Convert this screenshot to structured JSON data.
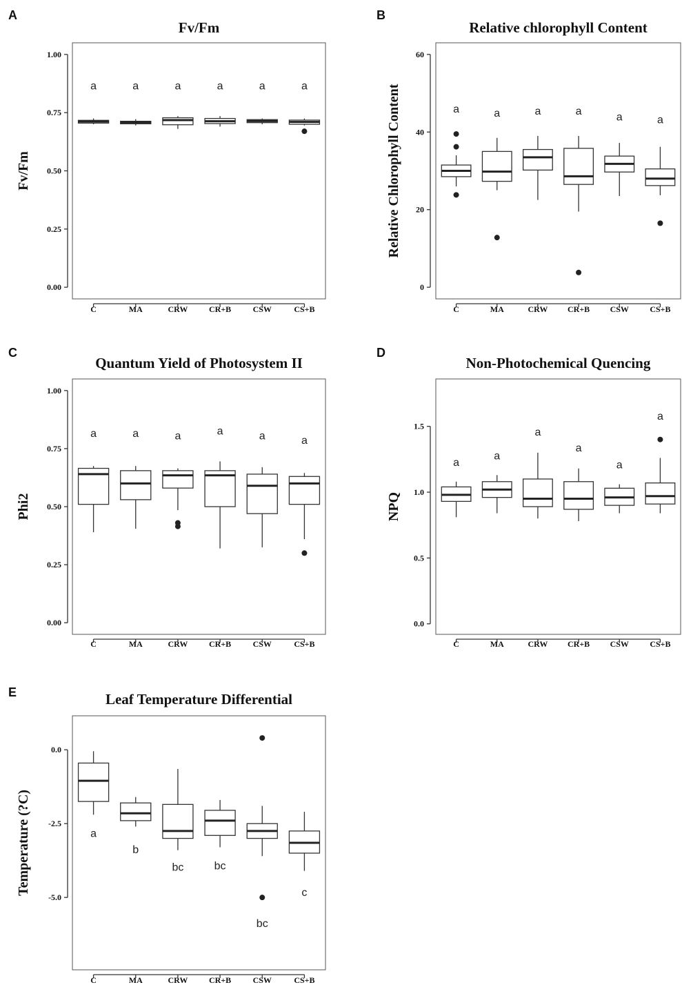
{
  "categories": [
    "C",
    "MA",
    "CRW",
    "CR+B",
    "CSW",
    "CS+B"
  ],
  "panels": [
    {
      "letter": "A",
      "title": "Fv/Fm",
      "ylabel": "Fv/Fm",
      "yticks": [
        "1.00",
        "0.75",
        "0.50",
        "0.25",
        "0.00"
      ],
      "chart_data": {
        "type": "box",
        "ylim": [
          -0.05,
          1.05
        ],
        "yticks": [
          0,
          0.25,
          0.5,
          0.75,
          1.0
        ],
        "boxes": [
          {
            "category": "C",
            "lw": 0.7,
            "q1": 0.705,
            "med": 0.712,
            "q3": 0.717,
            "uw": 0.725,
            "outliers": []
          },
          {
            "category": "MA",
            "lw": 0.695,
            "q1": 0.702,
            "med": 0.708,
            "q3": 0.713,
            "uw": 0.722,
            "outliers": []
          },
          {
            "category": "CRW",
            "lw": 0.68,
            "q1": 0.698,
            "med": 0.718,
            "q3": 0.728,
            "uw": 0.735,
            "outliers": []
          },
          {
            "category": "CR+B",
            "lw": 0.69,
            "q1": 0.703,
            "med": 0.713,
            "q3": 0.725,
            "uw": 0.735,
            "outliers": []
          },
          {
            "category": "CSW",
            "lw": 0.7,
            "q1": 0.707,
            "med": 0.714,
            "q3": 0.72,
            "uw": 0.725,
            "outliers": []
          },
          {
            "category": "CS+B",
            "lw": 0.695,
            "q1": 0.7,
            "med": 0.71,
            "q3": 0.718,
            "uw": 0.725,
            "outliers": [
              0.67
            ]
          }
        ],
        "letters": [
          {
            "text": "a",
            "y": 0.85
          },
          {
            "text": "a",
            "y": 0.85
          },
          {
            "text": "a",
            "y": 0.85
          },
          {
            "text": "a",
            "y": 0.85
          },
          {
            "text": "a",
            "y": 0.85
          },
          {
            "text": "a",
            "y": 0.85
          }
        ]
      }
    },
    {
      "letter": "B",
      "title": "Relative chlorophyll Content",
      "ylabel": "Relative Chlorophyll Content",
      "yticks": [
        "60",
        "40",
        "20",
        "0"
      ],
      "chart_data": {
        "type": "box",
        "ylim": [
          -3,
          63
        ],
        "yticks": [
          0,
          20,
          40,
          60
        ],
        "boxes": [
          {
            "category": "C",
            "lw": 26,
            "q1": 28.5,
            "med": 30,
            "q3": 31.5,
            "uw": 34,
            "outliers": [
              39.5,
              36.2,
              23.8
            ]
          },
          {
            "category": "MA",
            "lw": 25,
            "q1": 27.3,
            "med": 29.8,
            "q3": 35,
            "uw": 38.5,
            "outliers": [
              12.8
            ]
          },
          {
            "category": "CRW",
            "lw": 22.5,
            "q1": 30.2,
            "med": 33.5,
            "q3": 35.5,
            "uw": 39,
            "outliers": []
          },
          {
            "category": "CR+B",
            "lw": 19.5,
            "q1": 26.5,
            "med": 28.6,
            "q3": 35.8,
            "uw": 39,
            "outliers": [
              3.8
            ]
          },
          {
            "category": "CSW",
            "lw": 23.5,
            "q1": 29.7,
            "med": 31.8,
            "q3": 33.8,
            "uw": 37.2,
            "outliers": []
          },
          {
            "category": "CS+B",
            "lw": 23.7,
            "q1": 26.2,
            "med": 28,
            "q3": 30.5,
            "uw": 36.2,
            "outliers": [
              16.5
            ]
          }
        ],
        "letters": [
          {
            "text": "a",
            "y": 45
          },
          {
            "text": "a",
            "y": 44
          },
          {
            "text": "a",
            "y": 44.5
          },
          {
            "text": "a",
            "y": 44.5
          },
          {
            "text": "a",
            "y": 43
          },
          {
            "text": "a",
            "y": 42.3
          }
        ]
      }
    },
    {
      "letter": "C",
      "title": "Quantum Yield of Photosystem II",
      "ylabel": "Phi2",
      "yticks": [
        "1.00",
        "0.75",
        "0.50",
        "0.25",
        "0.00"
      ],
      "chart_data": {
        "type": "box",
        "ylim": [
          -0.05,
          1.05
        ],
        "yticks": [
          0,
          0.25,
          0.5,
          0.75,
          1.0
        ],
        "boxes": [
          {
            "category": "C",
            "lw": 0.39,
            "q1": 0.51,
            "med": 0.64,
            "q3": 0.665,
            "uw": 0.675,
            "outliers": []
          },
          {
            "category": "MA",
            "lw": 0.405,
            "q1": 0.53,
            "med": 0.6,
            "q3": 0.655,
            "uw": 0.675,
            "outliers": []
          },
          {
            "category": "CRW",
            "lw": 0.485,
            "q1": 0.58,
            "med": 0.635,
            "q3": 0.655,
            "uw": 0.665,
            "outliers": [
              0.43,
              0.415
            ]
          },
          {
            "category": "CR+B",
            "lw": 0.32,
            "q1": 0.5,
            "med": 0.635,
            "q3": 0.655,
            "uw": 0.695,
            "outliers": []
          },
          {
            "category": "CSW",
            "lw": 0.325,
            "q1": 0.47,
            "med": 0.59,
            "q3": 0.64,
            "uw": 0.67,
            "outliers": []
          },
          {
            "category": "CS+B",
            "lw": 0.36,
            "q1": 0.51,
            "med": 0.6,
            "q3": 0.63,
            "uw": 0.645,
            "outliers": [
              0.3
            ]
          }
        ],
        "letters": [
          {
            "text": "a",
            "y": 0.8
          },
          {
            "text": "a",
            "y": 0.8
          },
          {
            "text": "a",
            "y": 0.79
          },
          {
            "text": "a",
            "y": 0.81
          },
          {
            "text": "a",
            "y": 0.79
          },
          {
            "text": "a",
            "y": 0.77
          }
        ]
      }
    },
    {
      "letter": "D",
      "title": "Non-Photochemical Quencing",
      "ylabel": "NPQ",
      "yticks": [
        "1.5",
        "1.0",
        "0.5",
        "0.0"
      ],
      "chart_data": {
        "type": "box",
        "ylim": [
          -0.08,
          1.86
        ],
        "yticks": [
          0,
          0.5,
          1.0,
          1.5
        ],
        "boxes": [
          {
            "category": "C",
            "lw": 0.81,
            "q1": 0.93,
            "med": 0.98,
            "q3": 1.04,
            "uw": 1.08,
            "outliers": []
          },
          {
            "category": "MA",
            "lw": 0.84,
            "q1": 0.96,
            "med": 1.02,
            "q3": 1.08,
            "uw": 1.13,
            "outliers": []
          },
          {
            "category": "CRW",
            "lw": 0.8,
            "q1": 0.89,
            "med": 0.95,
            "q3": 1.1,
            "uw": 1.3,
            "outliers": []
          },
          {
            "category": "CR+B",
            "lw": 0.78,
            "q1": 0.87,
            "med": 0.95,
            "q3": 1.08,
            "uw": 1.18,
            "outliers": []
          },
          {
            "category": "CSW",
            "lw": 0.84,
            "q1": 0.9,
            "med": 0.96,
            "q3": 1.03,
            "uw": 1.06,
            "outliers": []
          },
          {
            "category": "CS+B",
            "lw": 0.84,
            "q1": 0.91,
            "med": 0.97,
            "q3": 1.07,
            "uw": 1.26,
            "outliers": [
              1.4
            ]
          }
        ],
        "letters": [
          {
            "text": "a",
            "y": 1.2
          },
          {
            "text": "a",
            "y": 1.25
          },
          {
            "text": "a",
            "y": 1.43
          },
          {
            "text": "a",
            "y": 1.31
          },
          {
            "text": "a",
            "y": 1.18
          },
          {
            "text": "a",
            "y": 1.55
          }
        ]
      }
    },
    {
      "letter": "E",
      "title": "Leaf Temperature Differential",
      "ylabel": "Temperature (?C)",
      "yticks": [
        "0.0",
        "-2.5",
        "-5.0"
      ],
      "chart_data": {
        "type": "box",
        "ylim": [
          -7.45,
          1.15
        ],
        "yticks": [
          -5.0,
          -2.5,
          0.0
        ],
        "boxes": [
          {
            "category": "C",
            "lw": -2.2,
            "q1": -1.75,
            "med": -1.05,
            "q3": -0.45,
            "uw": -0.05,
            "outliers": []
          },
          {
            "category": "MA",
            "lw": -2.6,
            "q1": -2.4,
            "med": -2.15,
            "q3": -1.8,
            "uw": -1.6,
            "outliers": []
          },
          {
            "category": "CRW",
            "lw": -3.4,
            "q1": -3.0,
            "med": -2.75,
            "q3": -1.85,
            "uw": -0.65,
            "outliers": []
          },
          {
            "category": "CR+B",
            "lw": -3.3,
            "q1": -2.9,
            "med": -2.4,
            "q3": -2.05,
            "uw": -1.7,
            "outliers": []
          },
          {
            "category": "CSW",
            "lw": -3.6,
            "q1": -3.0,
            "med": -2.75,
            "q3": -2.5,
            "uw": -1.9,
            "outliers": [
              0.4,
              -5.0
            ]
          },
          {
            "category": "CS+B",
            "lw": -4.1,
            "q1": -3.5,
            "med": -3.15,
            "q3": -2.75,
            "uw": -2.1,
            "outliers": []
          }
        ],
        "letters": [
          {
            "text": "a",
            "y": -2.95
          },
          {
            "text": "b",
            "y": -3.5
          },
          {
            "text": "bc",
            "y": -4.1
          },
          {
            "text": "bc",
            "y": -4.05
          },
          {
            "text": "bc",
            "y": -6.0
          },
          {
            "text": "c",
            "y": -4.95
          }
        ]
      }
    }
  ]
}
